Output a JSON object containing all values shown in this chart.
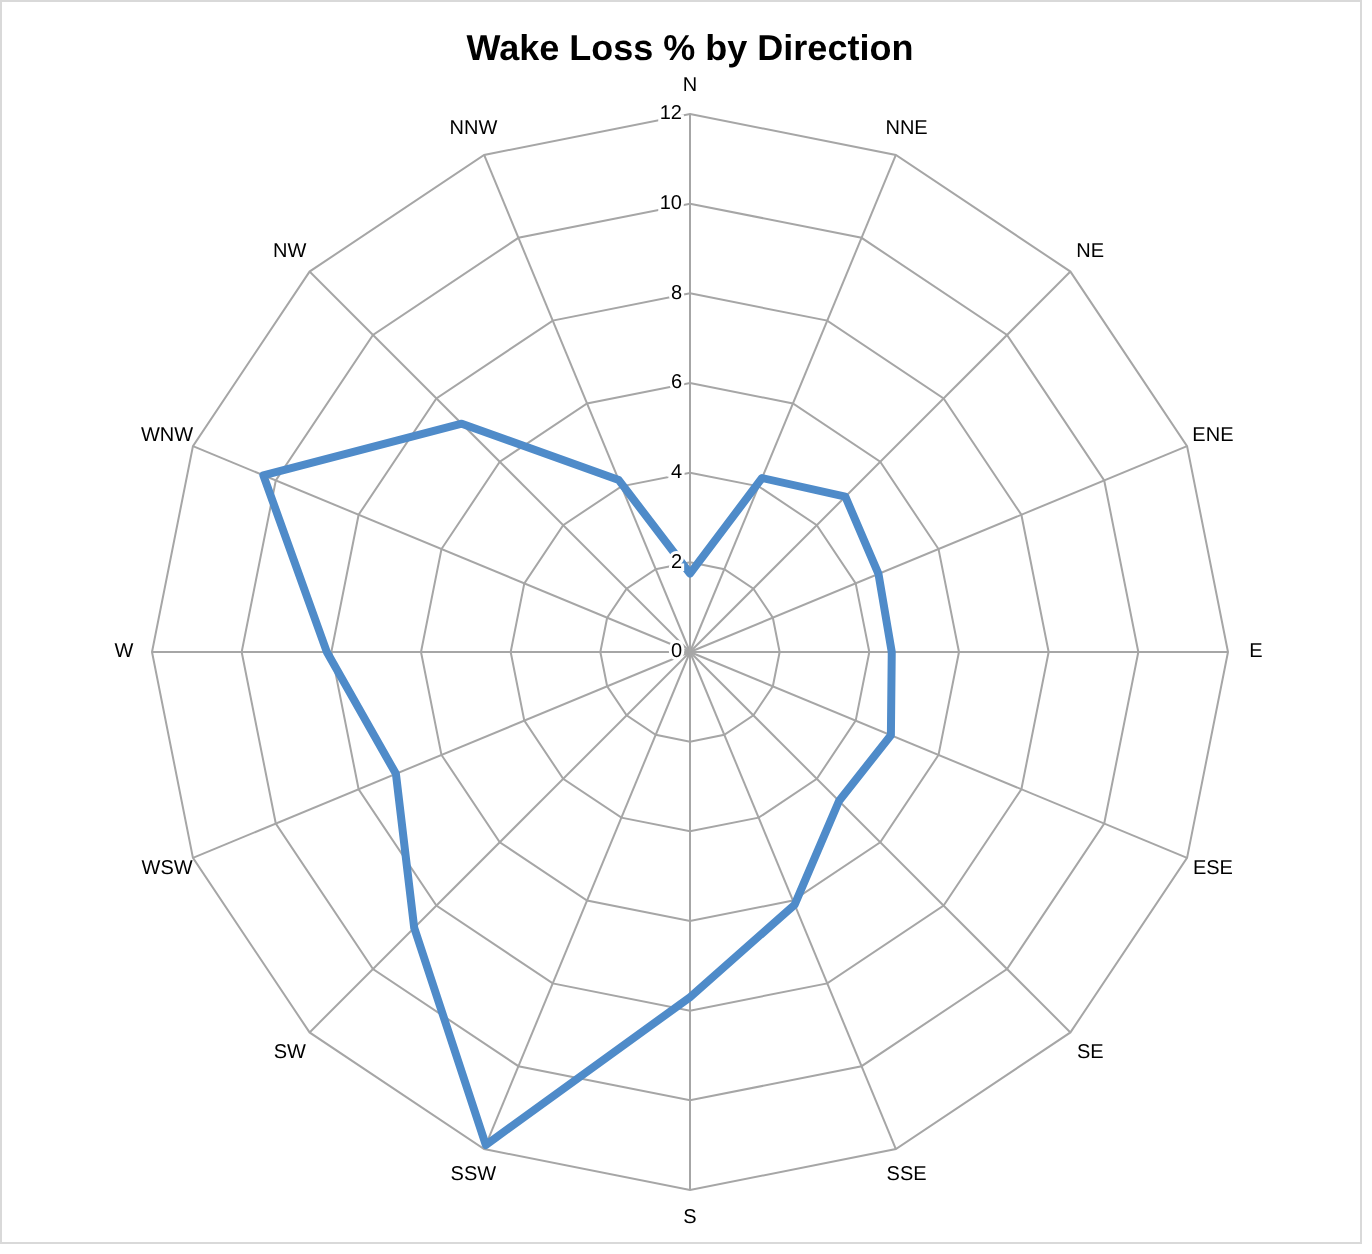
{
  "chart_data": {
    "type": "radar",
    "title": "Wake Loss % by Direction",
    "categories": [
      "N",
      "NNE",
      "NE",
      "ENE",
      "E",
      "ESE",
      "SE",
      "SSE",
      "S",
      "SSW",
      "SW",
      "WSW",
      "W",
      "WNW",
      "NW",
      "NNW"
    ],
    "series": [
      {
        "color": "#4f8bc9",
        "values": [
          1.75,
          4.2,
          4.9,
          4.55,
          4.5,
          4.85,
          4.7,
          6.1,
          7.7,
          11.9,
          8.7,
          7.1,
          8.1,
          10.3,
          7.2,
          4.15
        ]
      }
    ],
    "ylim": [
      0,
      12
    ],
    "yticks": [
      0,
      2,
      4,
      6,
      8,
      10,
      12
    ],
    "grid": true,
    "marker": "none",
    "line_style": "solid"
  }
}
